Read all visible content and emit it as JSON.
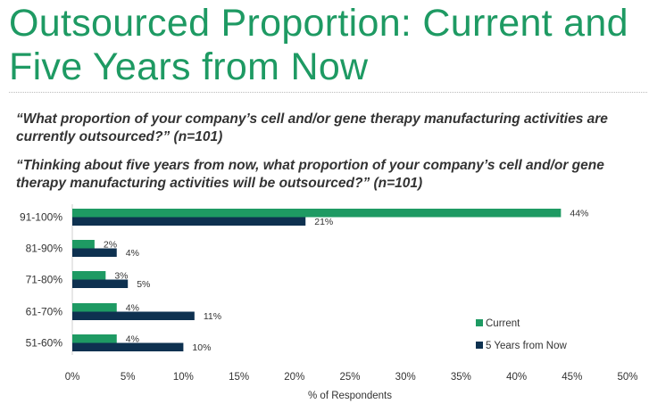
{
  "title": "Outsourced Proportion: Current and Five Years from Now",
  "question1": "“What proportion of your company’s cell and/or gene therapy manufacturing activities are currently outsourced?” (n=101)",
  "question2": "“Thinking about five years from now, what proportion of your company’s cell and/or gene therapy manufacturing activities will be outsourced?” (n=101)",
  "colors": {
    "current": "#1e9a63",
    "future": "#0e3150",
    "title": "#1e9a63"
  },
  "chart_data": {
    "type": "bar",
    "orientation": "horizontal",
    "categories": [
      "91-100%",
      "81-90%",
      "71-80%",
      "61-70%",
      "51-60%"
    ],
    "series": [
      {
        "name": "Current",
        "values": [
          44,
          2,
          3,
          4,
          4
        ],
        "labels": [
          "44%",
          "2%",
          "3%",
          "4%",
          "4%"
        ]
      },
      {
        "name": "5 Years from Now",
        "values": [
          21,
          4,
          5,
          11,
          10
        ],
        "labels": [
          "21%",
          "4%",
          "5%",
          "11%",
          "10%"
        ]
      }
    ],
    "xlabel": "% of Respondents",
    "xlim": [
      0,
      50
    ],
    "xticks": [
      "0%",
      "5%",
      "10%",
      "15%",
      "20%",
      "25%",
      "30%",
      "35%",
      "40%",
      "45%",
      "50%"
    ],
    "grid": false,
    "legend_position": "bottom-right"
  }
}
